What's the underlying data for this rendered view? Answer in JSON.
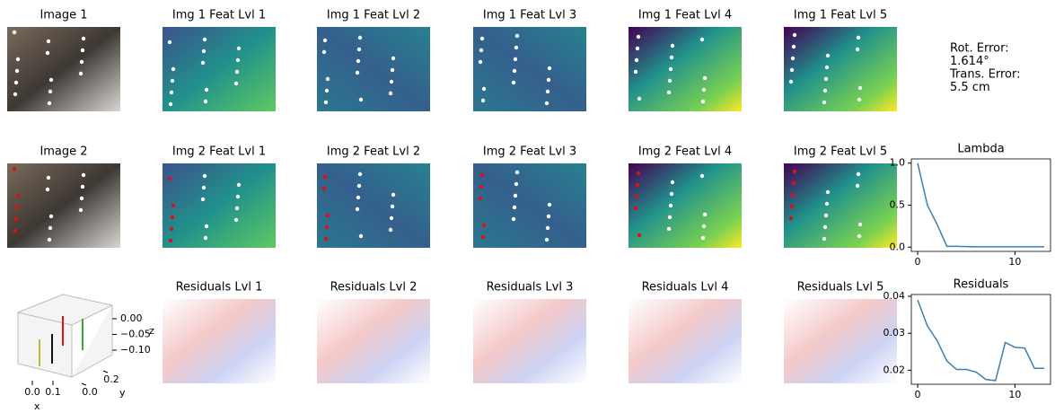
{
  "panels": [
    [
      "Image 1",
      "Img 1 Feat Lvl 1",
      "Img 1 Feat Lvl 2",
      "Img 1 Feat Lvl 3",
      "Img 1 Feat Lvl 4",
      "Img 1 Feat Lvl 5"
    ],
    [
      "Image 2",
      "Img 2 Feat Lvl 1",
      "Img 2 Feat Lvl 2",
      "Img 2 Feat Lvl 3",
      "Img 2 Feat Lvl 4",
      "Img 2 Feat Lvl 5"
    ],
    [
      "Residuals Lvl 1",
      "Residuals Lvl 2",
      "Residuals Lvl 3",
      "Residuals Lvl 4",
      "Residuals Lvl 5"
    ]
  ],
  "metrics": [
    "Rot. Error:",
    "1.614°",
    "Trans. Error:",
    "5.5 cm"
  ],
  "pose_plot": {
    "xlabel": "x",
    "ylabel": "y",
    "zlabel": "z",
    "xticks": [
      {
        "value": 0,
        "label": "0.0"
      },
      0.1
    ],
    "yticks": [
      {
        "value": 0,
        "label": "0.0"
      },
      0.2
    ],
    "zticks": [
      {
        "value": 0,
        "label": "0.00"
      },
      {
        "value": -0.05,
        "label": "−0.05"
      },
      {
        "value": -0.1,
        "label": "−0.10"
      }
    ]
  },
  "chart_data": [
    {
      "type": "line",
      "title": "Lambda",
      "color": "#3a7fb0",
      "x": [
        0,
        1,
        2,
        3,
        4,
        5,
        6,
        7,
        8,
        9,
        10,
        11,
        12,
        13
      ],
      "values": [
        1.0,
        0.5,
        0.27,
        0.01,
        0.01,
        0.008,
        0.005,
        0.005,
        0.005,
        0.005,
        0.005,
        0.005,
        0.005,
        0.005
      ],
      "xlim": [
        -0.65,
        13.65
      ],
      "ylim": [
        -0.05,
        1.05
      ],
      "xticks": [
        0,
        10
      ],
      "yticks": [
        {
          "value": 0,
          "label": "0.0"
        },
        {
          "value": 0.5,
          "label": "0.5"
        },
        {
          "value": 1,
          "label": "1.0"
        }
      ]
    },
    {
      "type": "line",
      "title": "Residuals",
      "color": "#3a7fb0",
      "x": [
        0,
        1,
        2,
        3,
        4,
        5,
        6,
        7,
        8,
        9,
        10,
        11,
        12,
        13
      ],
      "values": [
        0.039,
        0.032,
        0.028,
        0.0225,
        0.0202,
        0.0202,
        0.0195,
        0.0175,
        0.0172,
        0.0275,
        0.0262,
        0.026,
        0.0205,
        0.0205
      ],
      "xlim": [
        -0.65,
        13.65
      ],
      "ylim": [
        0.0162,
        0.0405
      ],
      "xticks": [
        0,
        10
      ],
      "yticks": [
        0.02,
        0.03,
        0.04
      ]
    }
  ]
}
